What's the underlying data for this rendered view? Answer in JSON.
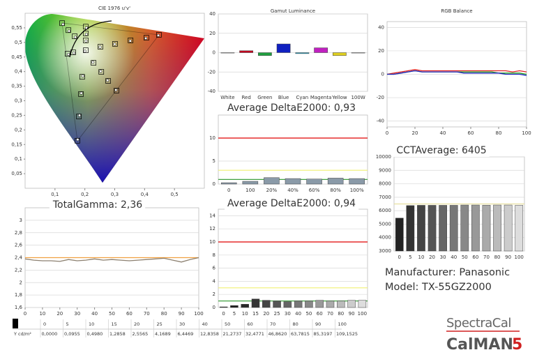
{
  "chart_data": [
    {
      "type": "scatter",
      "title": "CIE 1976 u'v'",
      "xlim": [
        0,
        0.6
      ],
      "ylim": [
        0,
        0.6
      ],
      "xticks": [
        {
          "value": 0.1,
          "label": "0,1"
        },
        {
          "value": 0.2,
          "label": "0,2"
        },
        {
          "value": 0.3,
          "label": "0,3"
        },
        {
          "value": 0.4,
          "label": "0,4"
        },
        {
          "value": 0.5,
          "label": "0,5"
        }
      ],
      "yticks": [
        {
          "value": 0.05,
          "label": "0,05"
        },
        {
          "value": 0.1,
          "label": "0,1"
        },
        {
          "value": 0.15,
          "label": "0,15"
        },
        {
          "value": 0.2,
          "label": "0,2"
        },
        {
          "value": 0.25,
          "label": "0,25"
        },
        {
          "value": 0.3,
          "label": "0,3"
        },
        {
          "value": 0.35,
          "label": "0,35"
        },
        {
          "value": 0.4,
          "label": "0,4"
        },
        {
          "value": 0.45,
          "label": "0,45"
        },
        {
          "value": 0.5,
          "label": "0,5"
        },
        {
          "value": 0.55,
          "label": "0,55"
        }
      ],
      "grid": false,
      "series": [
        {
          "marker": "square",
          "color": "#ffffff",
          "x": [
            0.448,
            0.406,
            0.353,
            0.301,
            0.252,
            0.191,
            0.187,
            0.18,
            0.175,
            0.124,
            0.145,
            0.166,
            0.229,
            0.255,
            0.278,
            0.306,
            0.203,
            0.203,
            0.203,
            0.142,
            0.161,
            0.203
          ],
          "y": [
            0.526,
            0.516,
            0.507,
            0.495,
            0.485,
            0.382,
            0.323,
            0.246,
            0.163,
            0.566,
            0.542,
            0.521,
            0.43,
            0.399,
            0.368,
            0.335,
            0.554,
            0.531,
            0.507,
            0.461,
            0.466,
            0.473
          ]
        },
        {
          "marker": "circle",
          "color": "#ffffff",
          "x": [
            0.446,
            0.404,
            0.352,
            0.3,
            0.251,
            0.193,
            0.188,
            0.182,
            0.176,
            0.127,
            0.147,
            0.168,
            0.227,
            0.253,
            0.276,
            0.304,
            0.205,
            0.205,
            0.204,
            0.145,
            0.163,
            0.2
          ],
          "y": [
            0.524,
            0.514,
            0.505,
            0.494,
            0.484,
            0.385,
            0.326,
            0.25,
            0.167,
            0.562,
            0.539,
            0.518,
            0.432,
            0.401,
            0.37,
            0.337,
            0.55,
            0.528,
            0.505,
            0.459,
            0.464,
            0.47
          ]
        }
      ]
    },
    {
      "type": "bar",
      "title": "Gamut Luminance",
      "categories": [
        "White",
        "Red",
        "Green",
        "Blue",
        "Cyan",
        "Magenta",
        "Yellow",
        "100W"
      ],
      "values": [
        0,
        2,
        -3,
        9,
        -1,
        5,
        -3,
        0
      ],
      "colors": [
        "#eeeeee",
        "#c00020",
        "#20a040",
        "#1020c0",
        "#20a0c0",
        "#c020c0",
        "#e0d020",
        "#dddddd"
      ],
      "ylim": [
        -40,
        40
      ],
      "yticks": [
        -40,
        -20,
        0,
        20,
        40
      ],
      "grid": true
    },
    {
      "type": "line",
      "title": "RGB Balance",
      "x": [
        0,
        5,
        10,
        15,
        20,
        25,
        30,
        35,
        40,
        45,
        50,
        55,
        60,
        65,
        70,
        75,
        80,
        85,
        90,
        95,
        100
      ],
      "xlim": [
        0,
        100
      ],
      "xticks": [
        0,
        20,
        40,
        60,
        80,
        100
      ],
      "ylim": [
        -45,
        45
      ],
      "yticks": [
        -40,
        -20,
        0,
        20,
        40
      ],
      "grid": true,
      "series": [
        {
          "color": "#e02020",
          "values": [
            0,
            1,
            2,
            3,
            4,
            3,
            3,
            3,
            3,
            3,
            3,
            3,
            3,
            3,
            3,
            3,
            3,
            3,
            2,
            3,
            2
          ]
        },
        {
          "color": "#20a020",
          "values": [
            0,
            0,
            1,
            2,
            3,
            2,
            2,
            2,
            2,
            2,
            2,
            2,
            2,
            2,
            2,
            2,
            1,
            1,
            1,
            1,
            0
          ]
        },
        {
          "color": "#2020c0",
          "values": [
            0,
            0,
            1,
            2,
            3,
            2,
            2,
            2,
            2,
            2,
            2,
            1,
            1,
            1,
            1,
            1,
            1,
            0,
            0,
            0,
            -1
          ]
        }
      ]
    },
    {
      "type": "bar",
      "title": "Average DeltaE2000: 0,93",
      "categories": [
        "0",
        "100",
        "20%",
        "40%",
        "60%",
        "80%",
        "100%"
      ],
      "values": [
        0.3,
        0.6,
        1.4,
        1.2,
        1.1,
        1.3,
        1.2
      ],
      "color": "#8a9aa8",
      "ylim": [
        0,
        15
      ],
      "yticks": [
        0,
        5,
        10
      ],
      "grid": true,
      "reference_lines": [
        {
          "value": 10,
          "color": "#e00000"
        },
        {
          "value": 3,
          "color": "#f0f070"
        },
        {
          "value": 1,
          "color": "#40a040"
        }
      ]
    },
    {
      "type": "bar",
      "title": "CCTAverage: 6405",
      "categories": [
        "0",
        "5",
        "10",
        "20",
        "30",
        "40",
        "50",
        "60",
        "70",
        "80",
        "90",
        "100"
      ],
      "values": [
        5450,
        6380,
        6400,
        6400,
        6400,
        6400,
        6420,
        6420,
        6410,
        6420,
        6420,
        6400
      ],
      "colors": [
        "#222222",
        "#333333",
        "#444444",
        "#555555",
        "#666666",
        "#777777",
        "#888888",
        "#999999",
        "#aaaaaa",
        "#bbbbbb",
        "#cccccc",
        "#dddddd"
      ],
      "ylim": [
        3000,
        10000
      ],
      "yticks": [
        3000,
        4000,
        5000,
        6000,
        7000,
        8000,
        9000,
        10000
      ],
      "grid": true,
      "reference_lines": [
        {
          "value": 6500,
          "color": "#e8e0a0"
        }
      ]
    },
    {
      "type": "line",
      "title": "TotalGamma: 2,36",
      "x": [
        0,
        5,
        10,
        15,
        20,
        25,
        30,
        35,
        40,
        45,
        50,
        55,
        60,
        65,
        70,
        75,
        80,
        85,
        90,
        95,
        100
      ],
      "xlim": [
        0,
        100
      ],
      "xticks": [
        0,
        10,
        20,
        30,
        40,
        50,
        60,
        70,
        80,
        90,
        100
      ],
      "ylim": [
        1.6,
        3.2
      ],
      "yticks": [
        {
          "value": 1.6,
          "label": "1,6"
        },
        {
          "value": 1.8,
          "label": "1,8"
        },
        2,
        {
          "value": 2.2,
          "label": "2,2"
        },
        {
          "value": 2.4,
          "label": "2,4"
        },
        {
          "value": 2.6,
          "label": "2,6"
        },
        {
          "value": 2.8,
          "label": "2,8"
        },
        3
      ],
      "grid": true,
      "reference_lines": [
        {
          "value": 2.4,
          "color": "#f0a040"
        }
      ],
      "series": [
        {
          "color": "#8c8070",
          "values": [
            2.38,
            2.36,
            2.35,
            2.35,
            2.34,
            2.37,
            2.35,
            2.36,
            2.38,
            2.36,
            2.37,
            2.36,
            2.35,
            2.36,
            2.37,
            2.38,
            2.39,
            2.36,
            2.33,
            2.37,
            2.4
          ]
        }
      ]
    },
    {
      "type": "bar",
      "title": "Average DeltaE2000: 0,94",
      "categories": [
        "0",
        "5",
        "10",
        "15",
        "20",
        "25",
        "30",
        "40",
        "50",
        "60",
        "70",
        "80",
        "90",
        "100"
      ],
      "values": [
        0.1,
        0.3,
        0.5,
        1.3,
        1.1,
        1.0,
        0.9,
        1.0,
        1.0,
        1.1,
        1.0,
        1.0,
        1.1,
        1.1
      ],
      "colors": [
        "#111111",
        "#1c1c1c",
        "#282828",
        "#353535",
        "#444444",
        "#555555",
        "#666666",
        "#777777",
        "#888888",
        "#999999",
        "#aaaaaa",
        "#bbbbbb",
        "#cccccc",
        "#dddddd"
      ],
      "ylim": [
        0,
        15
      ],
      "yticks": [
        0,
        2,
        4,
        6,
        8,
        10,
        12,
        14
      ],
      "grid": true,
      "reference_lines": [
        {
          "value": 10,
          "color": "#e00000"
        },
        {
          "value": 3,
          "color": "#f0f070"
        },
        {
          "value": 1,
          "color": "#40a040"
        }
      ]
    }
  ],
  "table": {
    "header": [
      "0",
      "5",
      "10",
      "15",
      "20",
      "25",
      "30",
      "40",
      "50",
      "60",
      "70",
      "80",
      "90",
      "100"
    ],
    "row_label": "Y cd/m²",
    "row": [
      "0,0000",
      "0,0955",
      "0,4980",
      "1,2858",
      "2,5565",
      "4,1689",
      "6,4469",
      "12,8358",
      "21,2737",
      "32,4771",
      "46,8620",
      "63,7815",
      "85,3197",
      "109,1525"
    ]
  },
  "info": {
    "manufacturer": "Manufacturer: Panasonic",
    "model": "Model: TX-55GZ2000"
  },
  "logo": {
    "brand": "SpectraCal",
    "product": "CalMAN",
    "version": "5"
  }
}
